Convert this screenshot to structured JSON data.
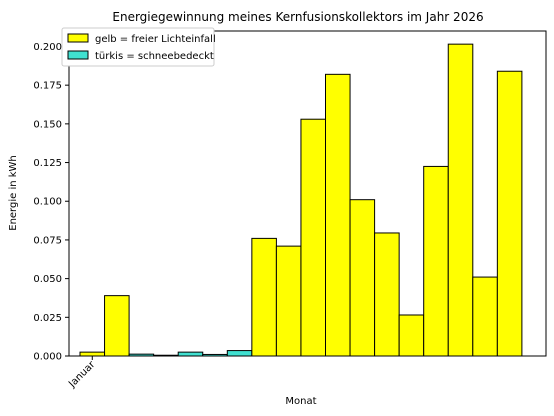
{
  "chart_data": {
    "type": "bar",
    "title": "Energiegewinnung meines Kernfusionskollektors im Jahr 2026",
    "xlabel": "Monat",
    "ylabel": "Energie in kWh",
    "x_tick_labels": [
      "Januar"
    ],
    "ylim": [
      0,
      0.21
    ],
    "y_ticks": [
      "0.000",
      "0.025",
      "0.050",
      "0.075",
      "0.100",
      "0.125",
      "0.150",
      "0.175",
      "0.200"
    ],
    "grid": false,
    "legend_position": "top-left",
    "legend": [
      {
        "label": "gelb = freier Lichteinfall",
        "color": "#ffff00"
      },
      {
        "label": "türkis = schneebedeckt",
        "color": "#40e0d0"
      }
    ],
    "values": [
      0.0025,
      0.039,
      0.0012,
      0.0005,
      0.0025,
      0.001,
      0.0035,
      0.076,
      0.071,
      0.153,
      0.182,
      0.101,
      0.0795,
      0.0265,
      0.1225,
      0.2015,
      0.051,
      0.184
    ],
    "colors": [
      "#ffff00",
      "#ffff00",
      "#40e0d0",
      "#40e0d0",
      "#40e0d0",
      "#40e0d0",
      "#40e0d0",
      "#ffff00",
      "#ffff00",
      "#ffff00",
      "#ffff00",
      "#ffff00",
      "#ffff00",
      "#ffff00",
      "#ffff00",
      "#ffff00",
      "#ffff00",
      "#ffff00"
    ]
  }
}
